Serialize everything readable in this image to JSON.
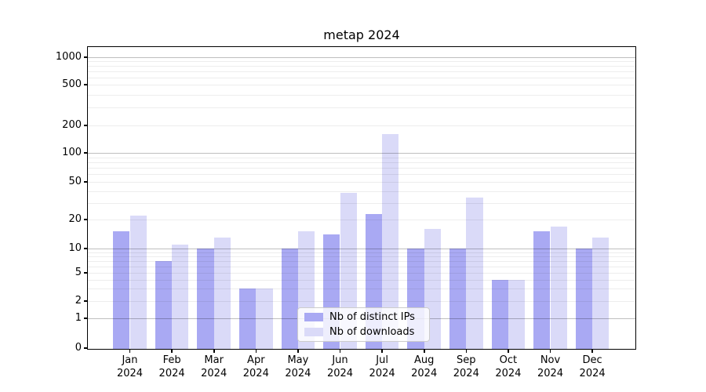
{
  "chart_data": {
    "type": "bar",
    "title": "metap 2024",
    "categories": [
      "Jan 2024",
      "Feb 2024",
      "Mar 2024",
      "Apr 2024",
      "May 2024",
      "Jun 2024",
      "Jul 2024",
      "Aug 2024",
      "Sep 2024",
      "Oct 2024",
      "Nov 2024",
      "Dec 2024"
    ],
    "series": [
      {
        "name": "Nb of distinct IPs",
        "color": "#a9a9f3",
        "values": [
          15,
          7,
          10,
          3,
          10,
          14,
          23,
          10,
          10,
          4,
          15,
          10
        ]
      },
      {
        "name": "Nb of downloads",
        "color": "#dadaf8",
        "values": [
          22,
          11,
          13,
          3,
          15,
          38,
          160,
          16,
          34,
          4,
          17,
          13
        ]
      }
    ],
    "xlabel": "",
    "ylabel": "",
    "yscale": "symlog",
    "y_ticks": [
      0,
      1,
      2,
      5,
      10,
      20,
      50,
      100,
      200,
      500,
      1000
    ],
    "ylim": [
      0,
      1300
    ],
    "grid": true,
    "legend_position": "lower center inside plot"
  }
}
